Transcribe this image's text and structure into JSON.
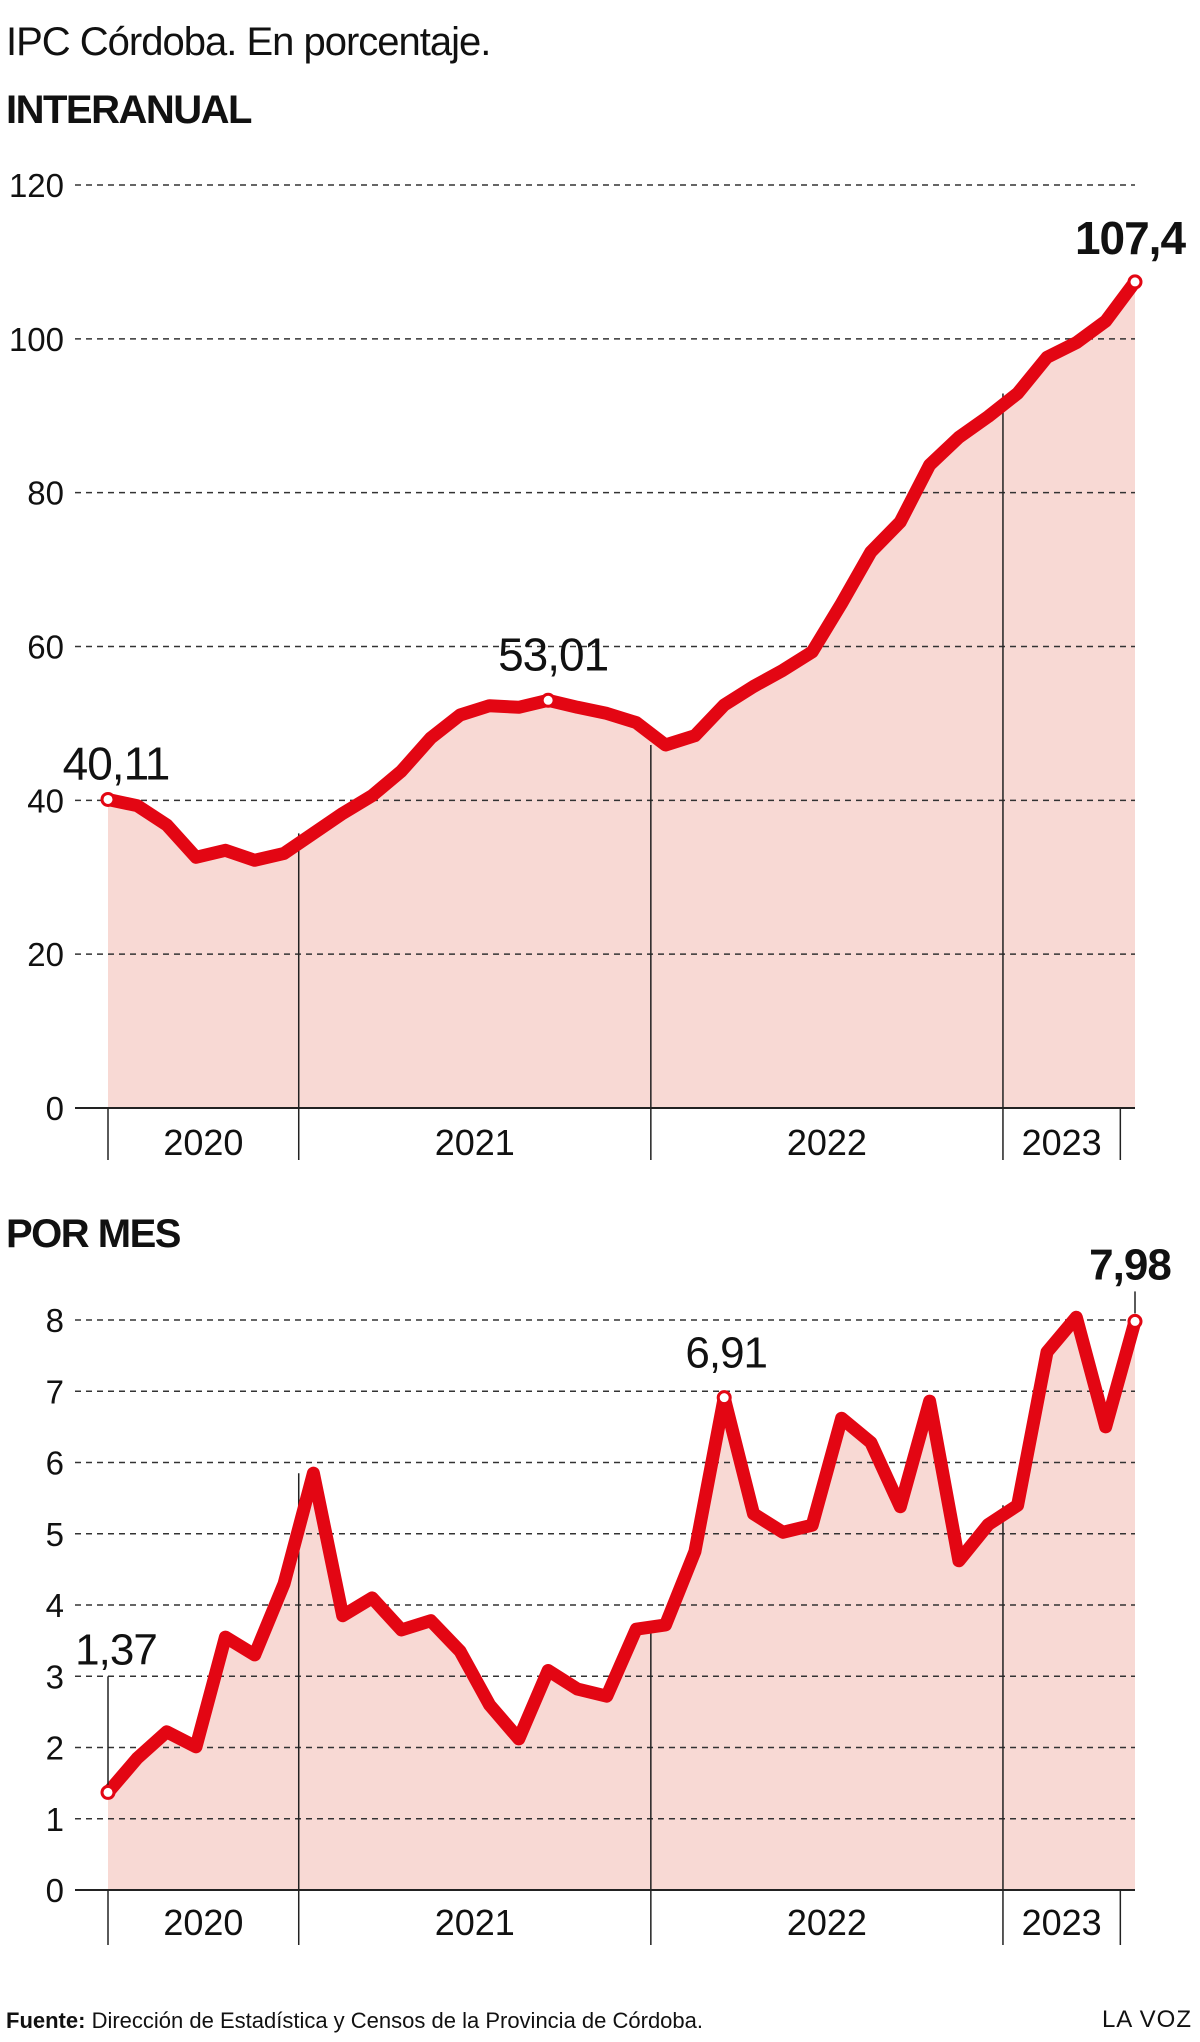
{
  "header": {
    "title": "IPC Córdoba. En porcentaje.",
    "section1_title": "INTERANUAL",
    "section2_title": "POR MES"
  },
  "footer": {
    "source_label": "Fuente:",
    "source_text": "Dirección de Estadística y Censos de la Provincia de Córdoba.",
    "brand": "LA VOZ"
  },
  "colors": {
    "line": "#e30613",
    "area": "#f8d9d4",
    "grid": "#333333"
  },
  "chart_data": [
    {
      "type": "area",
      "title": "INTERANUAL",
      "ylim": [
        0,
        120
      ],
      "yticks": [
        0,
        20,
        40,
        60,
        80,
        100,
        120
      ],
      "grid": true,
      "year_labels": [
        "2020",
        "2021",
        "2022",
        "2023"
      ],
      "year_months": [
        7,
        12,
        12,
        4
      ],
      "values": [
        40.11,
        39.3,
        36.8,
        32.6,
        33.5,
        32.2,
        33.1,
        35.7,
        38.3,
        40.6,
        43.8,
        48.1,
        51.1,
        52.3,
        52.1,
        53.01,
        52.1,
        51.3,
        50.1,
        47.2,
        48.4,
        52.4,
        54.8,
        56.9,
        59.3,
        65.6,
        72.3,
        76.2,
        83.6,
        87.2,
        89.9,
        92.9,
        97.6,
        99.5,
        102.3,
        107.4
      ],
      "annotations": [
        {
          "index": 0,
          "label": "40,11",
          "bold": false
        },
        {
          "index": 15,
          "label": "53,01",
          "bold": false
        },
        {
          "index": 35,
          "label": "107,4",
          "bold": true
        }
      ]
    },
    {
      "type": "area",
      "title": "POR MES",
      "ylim": [
        0,
        8
      ],
      "yticks": [
        0,
        1,
        2,
        3,
        4,
        5,
        6,
        7,
        8
      ],
      "grid": true,
      "year_labels": [
        "2020",
        "2021",
        "2022",
        "2023"
      ],
      "year_months": [
        7,
        12,
        12,
        4
      ],
      "values": [
        1.37,
        1.85,
        2.22,
        2.01,
        3.55,
        3.3,
        4.3,
        5.85,
        3.85,
        4.1,
        3.65,
        3.78,
        3.35,
        2.6,
        2.12,
        3.08,
        2.82,
        2.72,
        3.66,
        3.72,
        4.75,
        6.91,
        5.28,
        5.02,
        5.12,
        6.62,
        6.28,
        5.38,
        6.86,
        4.62,
        5.13,
        5.4,
        7.55,
        8.04,
        6.5,
        7.98
      ],
      "annotations": [
        {
          "index": 0,
          "label": "1,37",
          "bold": false
        },
        {
          "index": 21,
          "label": "6,91",
          "bold": false
        },
        {
          "index": 35,
          "label": "7,98",
          "bold": true
        }
      ]
    }
  ]
}
